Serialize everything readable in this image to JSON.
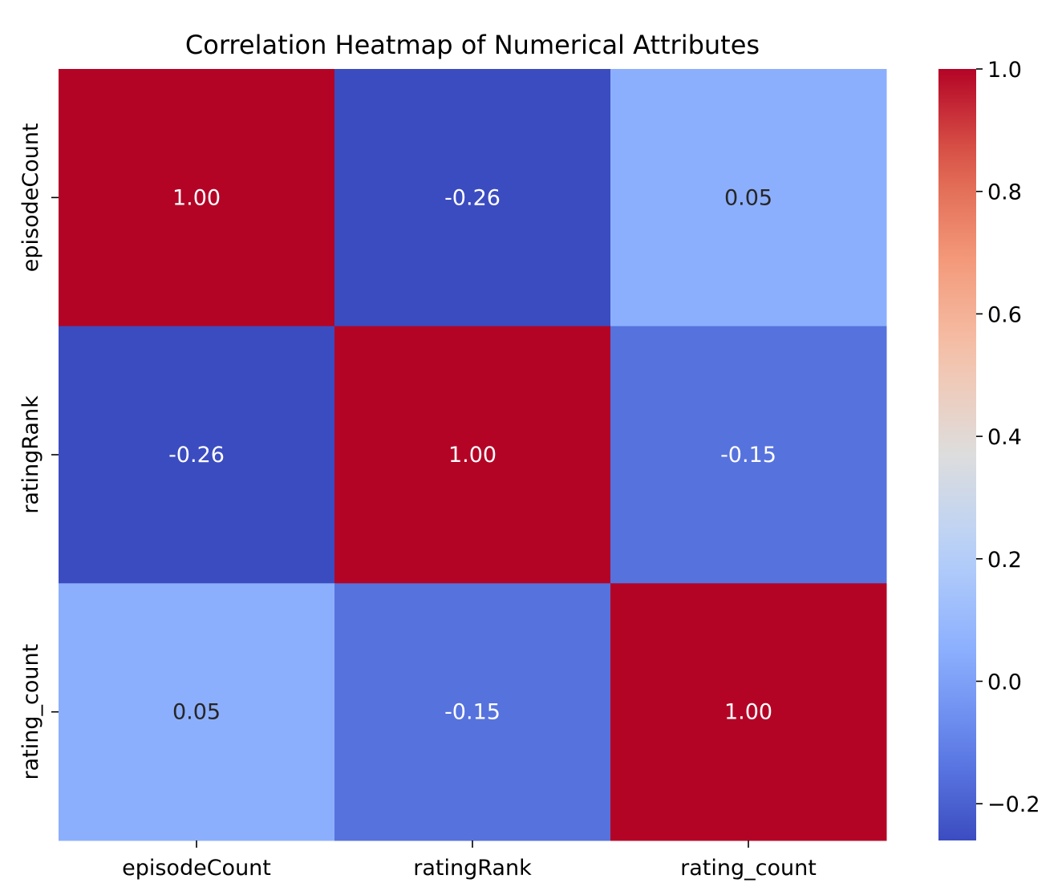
{
  "chart_data": {
    "type": "heatmap",
    "title": "Correlation Heatmap of Numerical Attributes",
    "xlabel": "",
    "ylabel": "",
    "x_categories": [
      "episodeCount",
      "ratingRank",
      "rating_count"
    ],
    "y_categories": [
      "episodeCount",
      "ratingRank",
      "rating_count"
    ],
    "values": [
      [
        1.0,
        -0.26,
        0.05
      ],
      [
        -0.26,
        1.0,
        -0.15
      ],
      [
        0.05,
        -0.15,
        1.0
      ]
    ],
    "cell_labels": [
      [
        "1.00",
        "-0.26",
        "0.05"
      ],
      [
        "-0.26",
        "1.00",
        "-0.15"
      ],
      [
        "0.05",
        "-0.15",
        "1.00"
      ]
    ],
    "colormap": "coolwarm",
    "colorbar": {
      "range": [
        -0.26,
        1.0
      ],
      "ticks": [
        -0.2,
        0.0,
        0.2,
        0.4,
        0.6,
        0.8,
        1.0
      ],
      "tick_labels": [
        "−0.2",
        "0.0",
        "0.2",
        "0.4",
        "0.6",
        "0.8",
        "1.0"
      ]
    },
    "grid": false
  }
}
